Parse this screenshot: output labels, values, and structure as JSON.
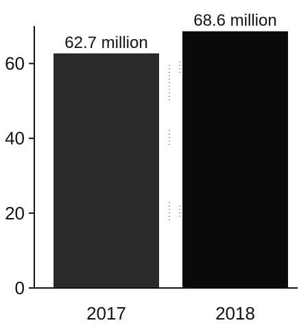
{
  "chart_data": {
    "type": "bar",
    "categories": [
      "2017",
      "2018"
    ],
    "values": [
      62.7,
      68.6
    ],
    "data_labels": [
      "62.7 million",
      "68.6 million"
    ],
    "yticks": [
      "0",
      "20",
      "40",
      "60"
    ],
    "ytick_values": [
      0,
      20,
      40,
      60
    ],
    "ylim": [
      0,
      70
    ],
    "title": "",
    "xlabel": "",
    "ylabel": "",
    "grid": false,
    "colors": {
      "bar_2017": "#2a2a2a",
      "bar_2018": "#0a0a0a",
      "axis": "#111111"
    }
  }
}
